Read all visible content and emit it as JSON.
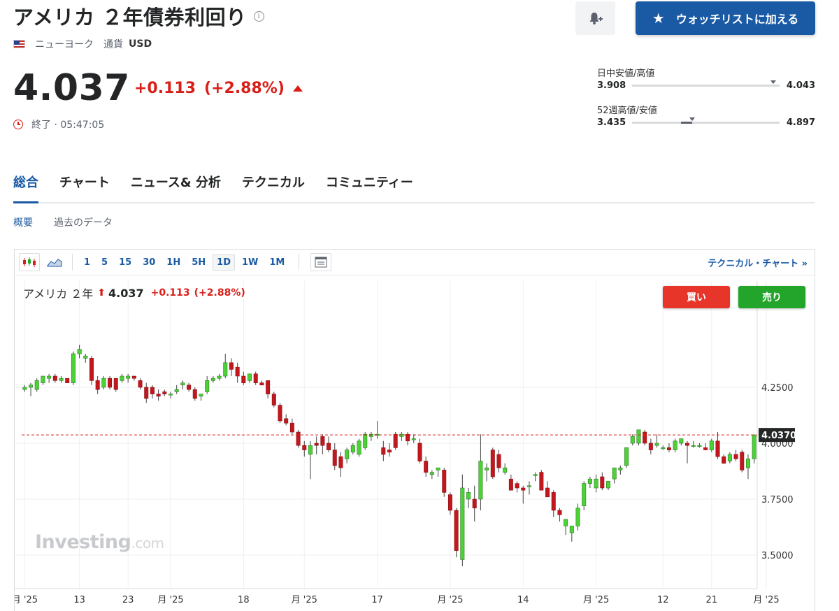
{
  "header": {
    "title": "アメリカ ２年債券利回り",
    "info_icon": "info-icon",
    "exchange": "ニューヨーク",
    "currency_label": "通貨",
    "currency": "USD"
  },
  "actions": {
    "alert_icon": "bell-plus-icon",
    "watchlist_label": "ウォッチリストに加える"
  },
  "quote": {
    "price": "4.037",
    "change": "+0.113",
    "change_pct": "(+2.88%)",
    "status": "終了 · 05:47:05"
  },
  "ranges": {
    "day_label": "日中安値/高値",
    "day_low": "3.908",
    "day_high": "4.043",
    "day_marker_fraction": 0.96,
    "week52_label": "52週高値/安値",
    "week52_low": "3.435",
    "week52_high": "4.897",
    "week52_marker_fraction": 0.41
  },
  "tabs": [
    "総合",
    "チャート",
    "ニュース& 分析",
    "テクニカル",
    "コミュニティー"
  ],
  "active_tab": 0,
  "subtabs": [
    "概要",
    "過去のデータ"
  ],
  "active_subtab": 0,
  "chart_toolbar": {
    "intervals": [
      "1",
      "5",
      "15",
      "30",
      "1H",
      "5H",
      "1D",
      "1W",
      "1M"
    ],
    "selected_interval": "1D",
    "technical_link": "テクニカル・チャート »"
  },
  "chart_legend": {
    "name": "アメリカ ２年",
    "price": "4.037",
    "change": "+0.113",
    "change_pct": "(+2.88%)",
    "buy_label": "買い",
    "sell_label": "売り"
  },
  "watermark": {
    "brand": "Investing",
    "suffix": ".com"
  },
  "colors": {
    "accent": "#1a5aa5",
    "up": "#22a52a",
    "down": "#d91e18"
  },
  "chart_data": {
    "type": "candlestick",
    "ylim": [
      3.35,
      4.6
    ],
    "y_ticks": [
      "4.2500",
      "4.0000",
      "3.7500",
      "3.5000"
    ],
    "current_value_label": "4.0370",
    "current_value": 4.037,
    "x_tick_labels": [
      "月 '25",
      "13",
      "23",
      "月 '25",
      "18",
      "月 '25",
      "17",
      "月 '25",
      "14",
      "月 '25",
      "12",
      "21",
      "月 '25"
    ],
    "x_tick_candle_index": [
      0,
      9,
      17,
      24,
      36,
      46,
      58,
      70,
      82,
      94,
      105,
      113,
      122
    ],
    "candles": [
      {
        "o": 4.24,
        "h": 4.26,
        "l": 4.23,
        "c": 4.25
      },
      {
        "o": 4.25,
        "h": 4.27,
        "l": 4.21,
        "c": 4.26
      },
      {
        "o": 4.24,
        "h": 4.29,
        "l": 4.23,
        "c": 4.28
      },
      {
        "o": 4.27,
        "h": 4.3,
        "l": 4.26,
        "c": 4.3
      },
      {
        "o": 4.29,
        "h": 4.31,
        "l": 4.27,
        "c": 4.3
      },
      {
        "o": 4.3,
        "h": 4.31,
        "l": 4.27,
        "c": 4.28
      },
      {
        "o": 4.28,
        "h": 4.3,
        "l": 4.27,
        "c": 4.29
      },
      {
        "o": 4.29,
        "h": 4.29,
        "l": 4.27,
        "c": 4.27
      },
      {
        "o": 4.27,
        "h": 4.41,
        "l": 4.26,
        "c": 4.4
      },
      {
        "o": 4.4,
        "h": 4.44,
        "l": 4.38,
        "c": 4.42
      },
      {
        "o": 4.38,
        "h": 4.4,
        "l": 4.36,
        "c": 4.39
      },
      {
        "o": 4.38,
        "h": 4.39,
        "l": 4.26,
        "c": 4.28
      },
      {
        "o": 4.28,
        "h": 4.3,
        "l": 4.22,
        "c": 4.24
      },
      {
        "o": 4.25,
        "h": 4.3,
        "l": 4.24,
        "c": 4.29
      },
      {
        "o": 4.29,
        "h": 4.3,
        "l": 4.24,
        "c": 4.25
      },
      {
        "o": 4.29,
        "h": 4.29,
        "l": 4.23,
        "c": 4.24
      },
      {
        "o": 4.28,
        "h": 4.31,
        "l": 4.27,
        "c": 4.3
      },
      {
        "o": 4.29,
        "h": 4.31,
        "l": 4.27,
        "c": 4.3
      },
      {
        "o": 4.3,
        "h": 4.3,
        "l": 4.28,
        "c": 4.29
      },
      {
        "o": 4.28,
        "h": 4.29,
        "l": 4.24,
        "c": 4.25
      },
      {
        "o": 4.25,
        "h": 4.27,
        "l": 4.18,
        "c": 4.2
      },
      {
        "o": 4.25,
        "h": 4.26,
        "l": 4.2,
        "c": 4.22
      },
      {
        "o": 4.22,
        "h": 4.24,
        "l": 4.19,
        "c": 4.21
      },
      {
        "o": 4.23,
        "h": 4.24,
        "l": 4.21,
        "c": 4.22
      },
      {
        "o": 4.22,
        "h": 4.23,
        "l": 4.2,
        "c": 4.22
      },
      {
        "o": 4.23,
        "h": 4.26,
        "l": 4.22,
        "c": 4.24
      },
      {
        "o": 4.26,
        "h": 4.28,
        "l": 4.24,
        "c": 4.27
      },
      {
        "o": 4.26,
        "h": 4.27,
        "l": 4.23,
        "c": 4.24
      },
      {
        "o": 4.24,
        "h": 4.25,
        "l": 4.19,
        "c": 4.2
      },
      {
        "o": 4.21,
        "h": 4.22,
        "l": 4.19,
        "c": 4.22
      },
      {
        "o": 4.23,
        "h": 4.3,
        "l": 4.22,
        "c": 4.28
      },
      {
        "o": 4.28,
        "h": 4.3,
        "l": 4.27,
        "c": 4.29
      },
      {
        "o": 4.29,
        "h": 4.31,
        "l": 4.28,
        "c": 4.3
      },
      {
        "o": 4.3,
        "h": 4.4,
        "l": 4.29,
        "c": 4.36
      },
      {
        "o": 4.36,
        "h": 4.38,
        "l": 4.3,
        "c": 4.33
      },
      {
        "o": 4.34,
        "h": 4.36,
        "l": 4.27,
        "c": 4.3
      },
      {
        "o": 4.3,
        "h": 4.32,
        "l": 4.26,
        "c": 4.27
      },
      {
        "o": 4.28,
        "h": 4.31,
        "l": 4.27,
        "c": 4.31
      },
      {
        "o": 4.31,
        "h": 4.32,
        "l": 4.26,
        "c": 4.27
      },
      {
        "o": 4.27,
        "h": 4.28,
        "l": 4.26,
        "c": 4.26
      },
      {
        "o": 4.28,
        "h": 4.28,
        "l": 4.2,
        "c": 4.22
      },
      {
        "o": 4.22,
        "h": 4.23,
        "l": 4.16,
        "c": 4.17
      },
      {
        "o": 4.17,
        "h": 4.18,
        "l": 4.09,
        "c": 4.1
      },
      {
        "o": 4.11,
        "h": 4.13,
        "l": 4.08,
        "c": 4.09
      },
      {
        "o": 4.09,
        "h": 4.11,
        "l": 4.04,
        "c": 4.05
      },
      {
        "o": 4.05,
        "h": 4.06,
        "l": 3.98,
        "c": 3.99
      },
      {
        "o": 3.99,
        "h": 4.01,
        "l": 3.94,
        "c": 3.97
      },
      {
        "o": 3.95,
        "h": 4.01,
        "l": 3.84,
        "c": 3.99
      },
      {
        "o": 4.0,
        "h": 4.03,
        "l": 3.95,
        "c": 3.99
      },
      {
        "o": 4.03,
        "h": 4.04,
        "l": 3.95,
        "c": 3.99
      },
      {
        "o": 4.0,
        "h": 4.03,
        "l": 3.96,
        "c": 3.97
      },
      {
        "o": 3.97,
        "h": 4.0,
        "l": 3.88,
        "c": 3.9
      },
      {
        "o": 3.94,
        "h": 3.96,
        "l": 3.85,
        "c": 3.89
      },
      {
        "o": 3.93,
        "h": 3.98,
        "l": 3.91,
        "c": 3.97
      },
      {
        "o": 3.96,
        "h": 4.0,
        "l": 3.95,
        "c": 3.99
      },
      {
        "o": 3.95,
        "h": 4.02,
        "l": 3.94,
        "c": 4.01
      },
      {
        "o": 3.98,
        "h": 4.05,
        "l": 3.97,
        "c": 4.04
      },
      {
        "o": 4.03,
        "h": 4.05,
        "l": 4.01,
        "c": 4.04
      },
      {
        "o": 4.04,
        "h": 4.1,
        "l": 4.02,
        "c": 4.04
      },
      {
        "o": 3.98,
        "h": 4.01,
        "l": 3.92,
        "c": 3.95
      },
      {
        "o": 3.97,
        "h": 4.0,
        "l": 3.94,
        "c": 3.96
      },
      {
        "o": 4.04,
        "h": 4.05,
        "l": 3.97,
        "c": 3.98
      },
      {
        "o": 4.03,
        "h": 4.05,
        "l": 4.01,
        "c": 4.04
      },
      {
        "o": 4.04,
        "h": 4.05,
        "l": 3.99,
        "c": 4.01
      },
      {
        "o": 4.02,
        "h": 4.04,
        "l": 4.0,
        "c": 4.02
      },
      {
        "o": 4.0,
        "h": 4.02,
        "l": 3.91,
        "c": 3.92
      },
      {
        "o": 3.92,
        "h": 3.94,
        "l": 3.85,
        "c": 3.87
      },
      {
        "o": 3.86,
        "h": 3.88,
        "l": 3.84,
        "c": 3.87
      },
      {
        "o": 3.88,
        "h": 3.89,
        "l": 3.85,
        "c": 3.89
      },
      {
        "o": 3.88,
        "h": 3.89,
        "l": 3.76,
        "c": 3.78
      },
      {
        "o": 3.77,
        "h": 3.78,
        "l": 3.68,
        "c": 3.7
      },
      {
        "o": 3.7,
        "h": 3.71,
        "l": 3.49,
        "c": 3.52
      },
      {
        "o": 3.48,
        "h": 3.86,
        "l": 3.45,
        "c": 3.8
      },
      {
        "o": 3.75,
        "h": 3.8,
        "l": 3.71,
        "c": 3.78
      },
      {
        "o": 3.75,
        "h": 3.81,
        "l": 3.65,
        "c": 3.71
      },
      {
        "o": 3.75,
        "h": 4.04,
        "l": 3.7,
        "c": 3.92
      },
      {
        "o": 3.88,
        "h": 3.91,
        "l": 3.83,
        "c": 3.89
      },
      {
        "o": 3.97,
        "h": 3.98,
        "l": 3.84,
        "c": 3.85
      },
      {
        "o": 3.95,
        "h": 3.97,
        "l": 3.87,
        "c": 3.89
      },
      {
        "o": 3.87,
        "h": 3.91,
        "l": 3.86,
        "c": 3.89
      },
      {
        "o": 3.84,
        "h": 3.86,
        "l": 3.79,
        "c": 3.79
      },
      {
        "o": 3.82,
        "h": 3.83,
        "l": 3.78,
        "c": 3.8
      },
      {
        "o": 3.8,
        "h": 3.81,
        "l": 3.73,
        "c": 3.79
      },
      {
        "o": 3.81,
        "h": 3.83,
        "l": 3.77,
        "c": 3.81
      },
      {
        "o": 3.86,
        "h": 3.87,
        "l": 3.83,
        "c": 3.86
      },
      {
        "o": 3.87,
        "h": 3.88,
        "l": 3.79,
        "c": 3.79
      },
      {
        "o": 3.8,
        "h": 3.83,
        "l": 3.76,
        "c": 3.76
      },
      {
        "o": 3.78,
        "h": 3.79,
        "l": 3.67,
        "c": 3.7
      },
      {
        "o": 3.7,
        "h": 3.71,
        "l": 3.65,
        "c": 3.68
      },
      {
        "o": 3.63,
        "h": 3.66,
        "l": 3.59,
        "c": 3.66
      },
      {
        "o": 3.6,
        "h": 3.62,
        "l": 3.56,
        "c": 3.63
      },
      {
        "o": 3.63,
        "h": 3.73,
        "l": 3.61,
        "c": 3.71
      },
      {
        "o": 3.72,
        "h": 3.83,
        "l": 3.7,
        "c": 3.82
      },
      {
        "o": 3.82,
        "h": 3.85,
        "l": 3.8,
        "c": 3.84
      },
      {
        "o": 3.8,
        "h": 3.86,
        "l": 3.78,
        "c": 3.84
      },
      {
        "o": 3.85,
        "h": 3.87,
        "l": 3.79,
        "c": 3.8
      },
      {
        "o": 3.8,
        "h": 3.83,
        "l": 3.79,
        "c": 3.83
      },
      {
        "o": 3.84,
        "h": 3.89,
        "l": 3.82,
        "c": 3.89
      },
      {
        "o": 3.88,
        "h": 3.9,
        "l": 3.86,
        "c": 3.89
      },
      {
        "o": 3.9,
        "h": 3.98,
        "l": 3.89,
        "c": 3.98
      },
      {
        "o": 4.0,
        "h": 4.04,
        "l": 3.99,
        "c": 4.03
      },
      {
        "o": 4.0,
        "h": 4.06,
        "l": 3.99,
        "c": 4.06
      },
      {
        "o": 4.05,
        "h": 4.06,
        "l": 3.99,
        "c": 4.0
      },
      {
        "o": 4.0,
        "h": 4.02,
        "l": 3.95,
        "c": 3.97
      },
      {
        "o": 3.99,
        "h": 4.04,
        "l": 3.98,
        "c": 4.0
      },
      {
        "o": 3.98,
        "h": 3.99,
        "l": 3.97,
        "c": 3.98
      },
      {
        "o": 3.98,
        "h": 4.0,
        "l": 3.96,
        "c": 3.97
      },
      {
        "o": 3.97,
        "h": 4.02,
        "l": 3.96,
        "c": 4.01
      },
      {
        "o": 4.0,
        "h": 4.02,
        "l": 3.99,
        "c": 4.02
      },
      {
        "o": 4.0,
        "h": 4.01,
        "l": 3.91,
        "c": 3.99
      },
      {
        "o": 3.99,
        "h": 4.01,
        "l": 3.98,
        "c": 3.99
      },
      {
        "o": 3.99,
        "h": 4.0,
        "l": 3.98,
        "c": 3.99
      },
      {
        "o": 3.98,
        "h": 4.0,
        "l": 3.97,
        "c": 3.97
      },
      {
        "o": 3.97,
        "h": 4.02,
        "l": 3.96,
        "c": 4.01
      },
      {
        "o": 4.01,
        "h": 4.05,
        "l": 3.93,
        "c": 3.94
      },
      {
        "o": 3.94,
        "h": 3.95,
        "l": 3.91,
        "c": 3.91
      },
      {
        "o": 3.92,
        "h": 3.96,
        "l": 3.91,
        "c": 3.95
      },
      {
        "o": 3.95,
        "h": 3.97,
        "l": 3.92,
        "c": 3.93
      },
      {
        "o": 3.96,
        "h": 3.97,
        "l": 3.87,
        "c": 3.88
      },
      {
        "o": 3.89,
        "h": 3.95,
        "l": 3.84,
        "c": 3.93
      },
      {
        "o": 3.93,
        "h": 4.04,
        "l": 3.91,
        "c": 4.037
      }
    ]
  }
}
